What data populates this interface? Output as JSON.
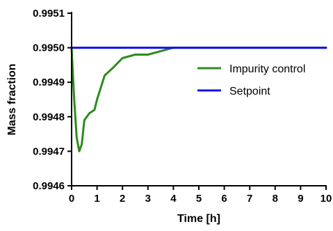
{
  "chart_data": {
    "type": "line",
    "title": "",
    "xlabel": "Time [h]",
    "ylabel": "Mass fraction",
    "xlim": [
      0,
      10
    ],
    "ylim": [
      0.9946,
      0.9951
    ],
    "x_ticks": [
      "0",
      "1",
      "2",
      "3",
      "4",
      "5",
      "6",
      "7",
      "8",
      "9",
      "10"
    ],
    "y_ticks": [
      "0.9946",
      "0.9947",
      "0.9948",
      "0.9949",
      "0.9950",
      "0.9951"
    ],
    "grid": false,
    "legend_position": "right",
    "series": [
      {
        "name": "Impurity control",
        "color": "#2e8b1e",
        "points": [
          [
            0,
            0.995
          ],
          [
            0.1,
            0.99485
          ],
          [
            0.2,
            0.99474
          ],
          [
            0.3,
            0.9947
          ],
          [
            0.4,
            0.99472
          ],
          [
            0.5,
            0.99479
          ],
          [
            0.7,
            0.99481
          ],
          [
            0.9,
            0.99482
          ],
          [
            1.0,
            0.99485
          ],
          [
            1.3,
            0.99492
          ],
          [
            1.6,
            0.99494
          ],
          [
            2.0,
            0.99497
          ],
          [
            2.5,
            0.99498
          ],
          [
            3.0,
            0.99498
          ],
          [
            3.5,
            0.99499
          ],
          [
            4.0,
            0.995
          ],
          [
            5.0,
            0.995
          ],
          [
            6.0,
            0.995
          ],
          [
            7.0,
            0.995
          ],
          [
            8.0,
            0.995
          ],
          [
            9.0,
            0.995
          ],
          [
            10.0,
            0.995
          ]
        ]
      },
      {
        "name": "Setpoint",
        "color": "#1010ee",
        "points": [
          [
            0,
            0.995
          ],
          [
            10,
            0.995
          ]
        ]
      }
    ]
  }
}
